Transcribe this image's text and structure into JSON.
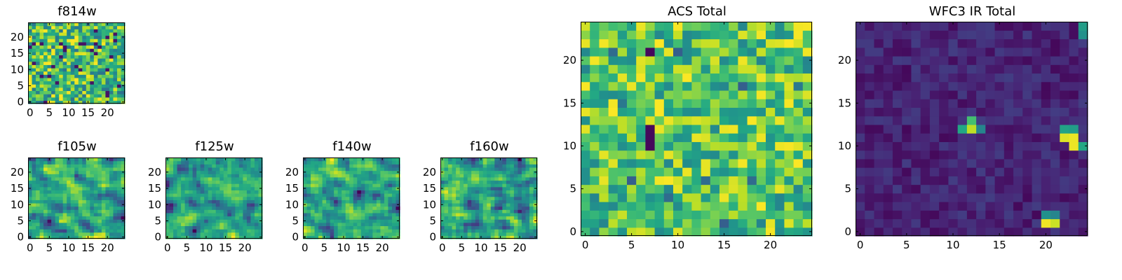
{
  "chart_data": [
    {
      "type": "heatmap",
      "title": "f814w",
      "xlabel": "",
      "ylabel": "",
      "xticks": [
        "0",
        "5",
        "10",
        "15",
        "20"
      ],
      "yticks": [
        "0",
        "5",
        "10",
        "15",
        "20"
      ],
      "xlim": [
        -0.5,
        24.5
      ],
      "ylim": [
        -0.5,
        24.5
      ],
      "grid_size": 25,
      "colormap": "viridis",
      "seed": 814,
      "style": "noisy"
    },
    {
      "type": "heatmap",
      "title": "f105w",
      "xlabel": "",
      "ylabel": "",
      "xticks": [
        "0",
        "5",
        "10",
        "15",
        "20"
      ],
      "yticks": [
        "0",
        "5",
        "10",
        "15",
        "20"
      ],
      "xlim": [
        -0.5,
        24.5
      ],
      "ylim": [
        -0.5,
        24.5
      ],
      "grid_size": 25,
      "colormap": "viridis",
      "seed": 105,
      "style": "smooth"
    },
    {
      "type": "heatmap",
      "title": "f125w",
      "xlabel": "",
      "ylabel": "",
      "xticks": [
        "0",
        "5",
        "10",
        "15",
        "20"
      ],
      "yticks": [
        "0",
        "5",
        "10",
        "15",
        "20"
      ],
      "xlim": [
        -0.5,
        24.5
      ],
      "ylim": [
        -0.5,
        24.5
      ],
      "grid_size": 25,
      "colormap": "viridis",
      "seed": 125,
      "style": "smooth"
    },
    {
      "type": "heatmap",
      "title": "f140w",
      "xlabel": "",
      "ylabel": "",
      "xticks": [
        "0",
        "5",
        "10",
        "15",
        "20"
      ],
      "yticks": [
        "0",
        "5",
        "10",
        "15",
        "20"
      ],
      "xlim": [
        -0.5,
        24.5
      ],
      "ylim": [
        -0.5,
        24.5
      ],
      "grid_size": 25,
      "colormap": "viridis",
      "seed": 140,
      "style": "smooth"
    },
    {
      "type": "heatmap",
      "title": "f160w",
      "xlabel": "",
      "ylabel": "",
      "xticks": [
        "0",
        "5",
        "10",
        "15",
        "20"
      ],
      "yticks": [
        "0",
        "5",
        "10",
        "15",
        "20"
      ],
      "xlim": [
        -0.5,
        24.5
      ],
      "ylim": [
        -0.5,
        24.5
      ],
      "grid_size": 25,
      "colormap": "viridis",
      "seed": 160,
      "style": "smooth"
    },
    {
      "type": "heatmap",
      "title": "ACS Total",
      "xlabel": "",
      "ylabel": "",
      "xticks": [
        "0",
        "5",
        "10",
        "15",
        "20"
      ],
      "yticks": [
        "0",
        "5",
        "10",
        "15",
        "20"
      ],
      "xlim": [
        -0.5,
        24.5
      ],
      "ylim": [
        -0.5,
        24.5
      ],
      "grid_size": 25,
      "colormap": "viridis",
      "seed": 77,
      "style": "bright",
      "low_pixels": [
        [
          3,
          21
        ],
        [
          7,
          21
        ],
        [
          10,
          21
        ],
        [
          17,
          17
        ],
        [
          4,
          15
        ],
        [
          7,
          12
        ],
        [
          7,
          11
        ],
        [
          7,
          10
        ],
        [
          13,
          6
        ],
        [
          9,
          4
        ],
        [
          15,
          1
        ],
        [
          18,
          6
        ],
        [
          5,
          6
        ],
        [
          23,
          17
        ]
      ]
    },
    {
      "type": "heatmap",
      "title": "WFC3 IR Total",
      "xlabel": "",
      "ylabel": "",
      "xticks": [
        "0",
        "5",
        "10",
        "15",
        "20"
      ],
      "yticks": [
        "0",
        "5",
        "10",
        "15",
        "20"
      ],
      "xlim": [
        -0.5,
        24.5
      ],
      "ylim": [
        -0.5,
        24.5
      ],
      "grid_size": 25,
      "colormap": "viridis",
      "seed": 333,
      "style": "dark",
      "bright_pixels": [
        {
          "x": 23,
          "y": 11,
          "v": 0.97
        },
        {
          "x": 23,
          "y": 10,
          "v": 0.97
        },
        {
          "x": 22,
          "y": 11,
          "v": 0.95
        },
        {
          "x": 22,
          "y": 12,
          "v": 0.58
        },
        {
          "x": 23,
          "y": 12,
          "v": 0.55
        },
        {
          "x": 24,
          "y": 10,
          "v": 0.6
        },
        {
          "x": 12,
          "y": 12,
          "v": 0.9
        },
        {
          "x": 12,
          "y": 13,
          "v": 0.7
        },
        {
          "x": 11,
          "y": 12,
          "v": 0.6
        },
        {
          "x": 13,
          "y": 12,
          "v": 0.45
        },
        {
          "x": 20,
          "y": 1,
          "v": 0.98
        },
        {
          "x": 21,
          "y": 1,
          "v": 0.92
        },
        {
          "x": 20,
          "y": 2,
          "v": 0.5
        },
        {
          "x": 21,
          "y": 2,
          "v": 0.45
        },
        {
          "x": 24,
          "y": 24,
          "v": 0.55
        },
        {
          "x": 24,
          "y": 23,
          "v": 0.5
        }
      ]
    }
  ]
}
